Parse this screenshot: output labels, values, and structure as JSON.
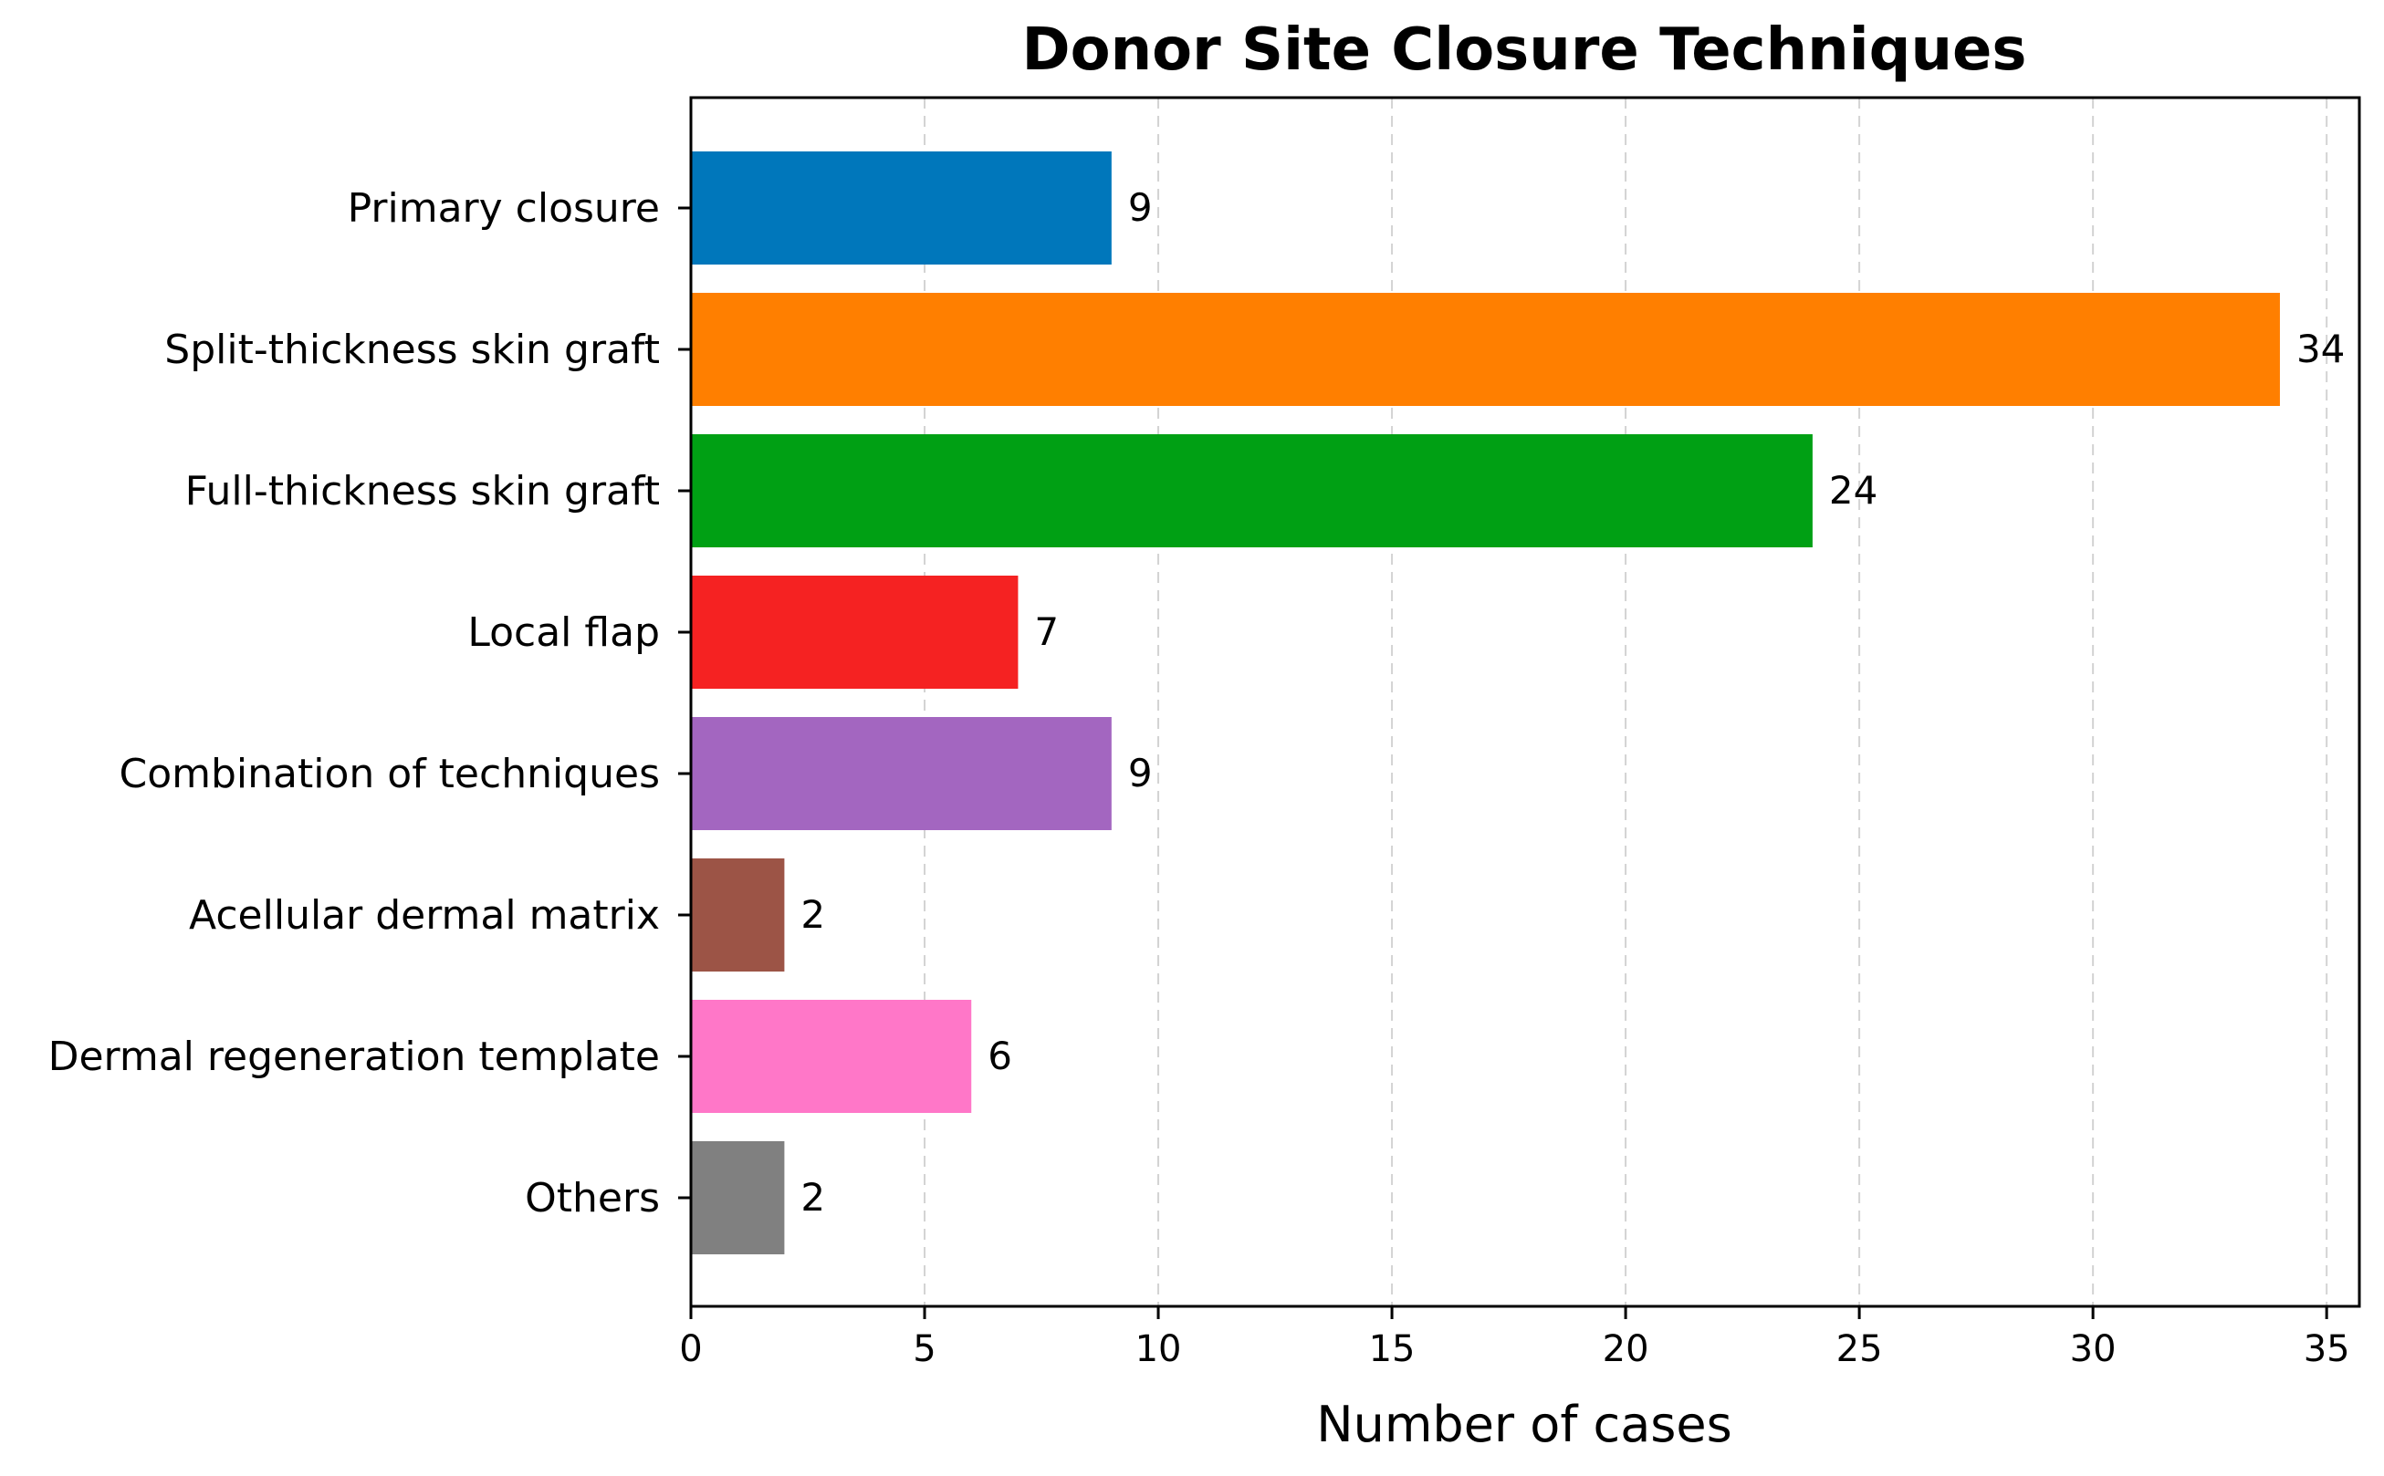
{
  "chart_data": {
    "type": "bar",
    "orientation": "horizontal",
    "title": "Donor Site Closure Techniques",
    "xlabel": "Number of cases",
    "ylabel": "",
    "xlim": [
      0,
      35.7
    ],
    "xticks": [
      0,
      5,
      10,
      15,
      20,
      25,
      30,
      35
    ],
    "grid": "vertical-dashed",
    "categories": [
      "Primary closure",
      "Split-thickness skin graft",
      "Full-thickness skin graft",
      "Local flap",
      "Combination of techniques",
      "Acellular dermal matrix",
      "Dermal regeneration template",
      "Others"
    ],
    "values": [
      9,
      34,
      24,
      7,
      9,
      2,
      6,
      2
    ],
    "colors": [
      "#0077bb",
      "#ff7f00",
      "#00a014",
      "#f52222",
      "#a366c0",
      "#9c5446",
      "#ff77c8",
      "#808080"
    ]
  }
}
